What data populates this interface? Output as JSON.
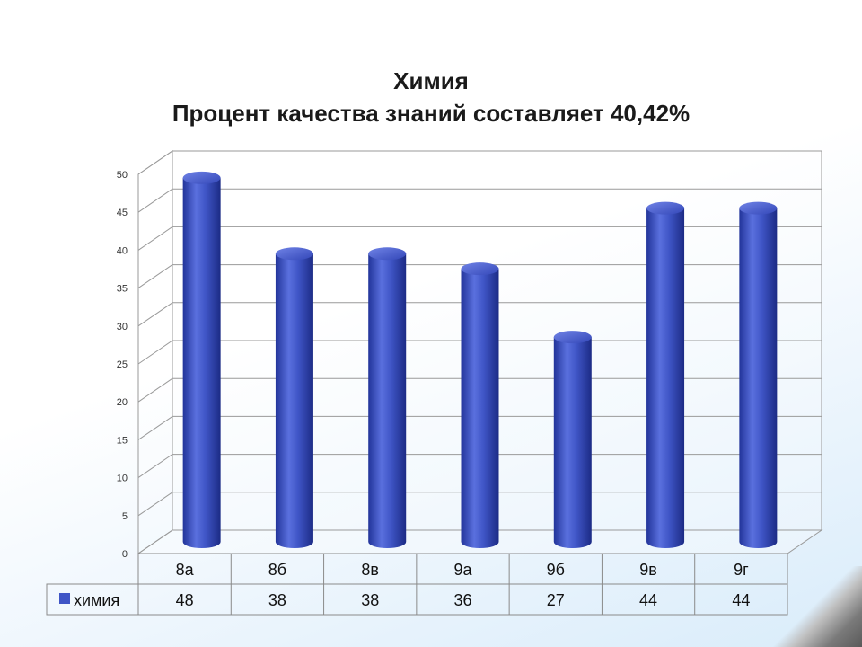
{
  "chart_data": {
    "type": "bar",
    "title": "Химия",
    "subtitle": "Процент качества знаний составляет 40,42%",
    "categories": [
      "8а",
      "8б",
      "8в",
      "9а",
      "9б",
      "9в",
      "9г"
    ],
    "series": [
      {
        "name": "химия",
        "values": [
          48,
          38,
          38,
          36,
          27,
          44,
          44
        ],
        "color": "#3f55c6"
      }
    ],
    "ylim": [
      0,
      50
    ],
    "yticks": [
      0,
      5,
      10,
      15,
      20,
      25,
      30,
      35,
      40,
      45,
      50
    ],
    "grid": true,
    "legend": "data-table-left",
    "style": "3d-cylinder"
  }
}
